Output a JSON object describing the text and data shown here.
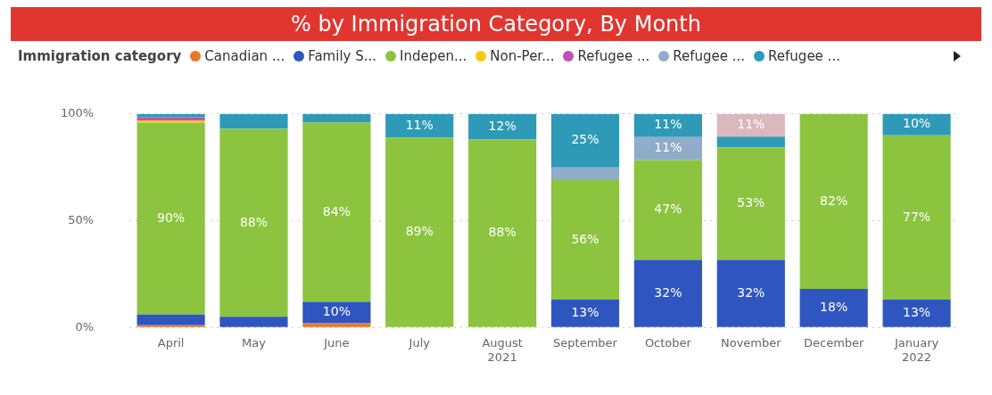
{
  "chart_data": {
    "type": "bar",
    "title": "% by Immigration Category, By Month",
    "legend_title": "Immigration category",
    "categories": [
      "April",
      "May",
      "June",
      "July",
      "August\n2021",
      "September",
      "October",
      "November",
      "December",
      "January\n2022"
    ],
    "stacked": true,
    "ylim": [
      0,
      100
    ],
    "yticks": [
      {
        "value": 0,
        "label": "0%"
      },
      {
        "value": 50,
        "label": "50%"
      },
      {
        "value": 100,
        "label": "100%"
      }
    ],
    "grid": "y",
    "legend": "top left",
    "series": [
      {
        "name": "Canadian ...",
        "color": "#e8772e",
        "values": [
          1,
          0,
          2,
          0,
          0,
          0,
          0,
          0,
          0,
          0
        ],
        "value_labels": [
          null,
          null,
          null,
          null,
          null,
          null,
          null,
          null,
          null,
          null
        ]
      },
      {
        "name": "Family S...",
        "color": "#2f55c0",
        "values": [
          5,
          5,
          10,
          0,
          0,
          13,
          31.6,
          31.6,
          18,
          13
        ],
        "value_labels": [
          null,
          null,
          "10%",
          null,
          null,
          "13%",
          "32%",
          "32%",
          "18%",
          "13%"
        ]
      },
      {
        "name": "Indepen...",
        "color": "#8cc43f",
        "values": [
          90,
          88,
          84,
          89,
          88,
          56,
          46.8,
          52.8,
          82,
          77
        ],
        "value_labels": [
          "90%",
          "88%",
          "84%",
          "89%",
          "88%",
          "56%",
          "47%",
          "53%",
          "82%",
          "77%"
        ]
      },
      {
        "name": "Non-Per...",
        "color": "#f9c80e",
        "values": [
          1,
          0,
          0,
          0,
          0,
          0,
          0,
          0,
          0,
          0
        ],
        "value_labels": [
          null,
          null,
          null,
          null,
          null,
          null,
          null,
          null,
          null,
          null
        ]
      },
      {
        "name": "Refugee ...",
        "color": "#c44fb8",
        "values": [
          1.5,
          0,
          0,
          0,
          0,
          0,
          0,
          0,
          0,
          0
        ],
        "value_labels": [
          null,
          null,
          null,
          null,
          null,
          null,
          null,
          null,
          null,
          null
        ]
      },
      {
        "name": "Refugee ...",
        "color": "#8fadc9",
        "values": [
          0,
          0,
          0,
          0,
          0,
          6,
          10.8,
          0,
          0,
          0
        ],
        "value_labels": [
          null,
          null,
          null,
          null,
          null,
          null,
          "11%",
          null,
          null,
          null
        ]
      },
      {
        "name": "Refugee ...",
        "color": "#2e9ab8",
        "values": [
          1.5,
          7,
          4,
          11,
          12,
          25,
          10.8,
          5,
          0,
          10
        ],
        "value_labels": [
          null,
          null,
          null,
          "11%",
          "12%",
          "25%",
          "11%",
          null,
          null,
          "10%"
        ]
      },
      {
        "color": "#dbb8bc",
        "values": [
          0,
          0,
          0,
          0,
          0,
          0,
          0,
          10.6,
          0,
          0
        ],
        "value_labels": [
          null,
          null,
          null,
          null,
          null,
          null,
          null,
          "11%",
          null,
          null
        ]
      }
    ]
  }
}
